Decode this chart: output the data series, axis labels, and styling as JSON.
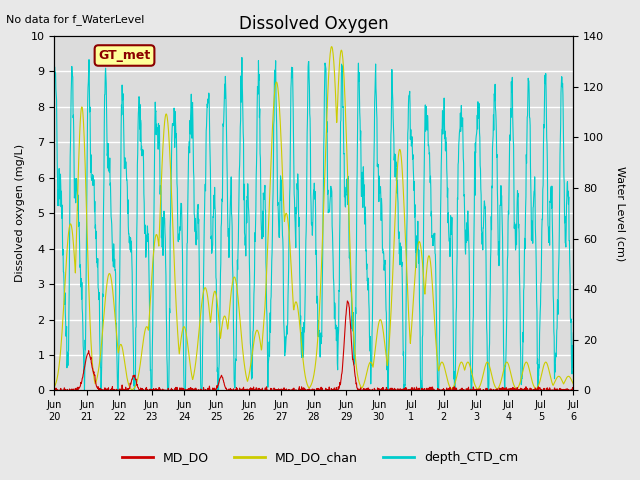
{
  "title": "Dissolved Oxygen",
  "top_left_note": "No data for f_WaterLevel",
  "ylabel_left": "Dissolved oxygen (mg/L)",
  "ylabel_right": "Water Level (cm)",
  "ylim_left": [
    0,
    10.0
  ],
  "ylim_right": [
    0,
    140
  ],
  "yticks_left": [
    0,
    1.0,
    2.0,
    3.0,
    4.0,
    5.0,
    6.0,
    7.0,
    8.0,
    9.0,
    10.0
  ],
  "yticks_right": [
    0,
    20,
    40,
    60,
    80,
    100,
    120,
    140
  ],
  "xtick_positions": [
    0,
    1,
    2,
    3,
    4,
    5,
    6,
    7,
    8,
    9,
    10,
    11,
    12,
    13,
    14,
    15,
    16
  ],
  "xtick_labels": [
    "Jun\n20",
    "Jun\n21",
    "Jun\n22",
    "Jun\n23",
    "Jun\n24",
    "Jun\n25",
    "Jun\n26",
    "Jun\n27",
    "Jun\n28",
    "Jun\n29",
    "Jun\n30",
    "Jul\n1",
    "Jul\n2",
    "Jul\n3",
    "Jul\n4",
    "Jul\n5",
    "Jul\n6"
  ],
  "annotation_box": "GT_met",
  "annotation_box_facecolor": "#FFFF99",
  "annotation_box_edgecolor": "#8B0000",
  "annotation_box_textcolor": "#8B0000",
  "line_colors": {
    "MD_DO": "#CC0000",
    "MD_DO_chan": "#CCCC00",
    "depth_CTD_cm": "#00CCCC"
  },
  "legend_labels": [
    "MD_DO",
    "MD_DO_chan",
    "depth_CTD_cm"
  ],
  "background_color": "#E8E8E8",
  "plot_bg_color": "#DCDCDC",
  "grid_color": "#FFFFFF"
}
